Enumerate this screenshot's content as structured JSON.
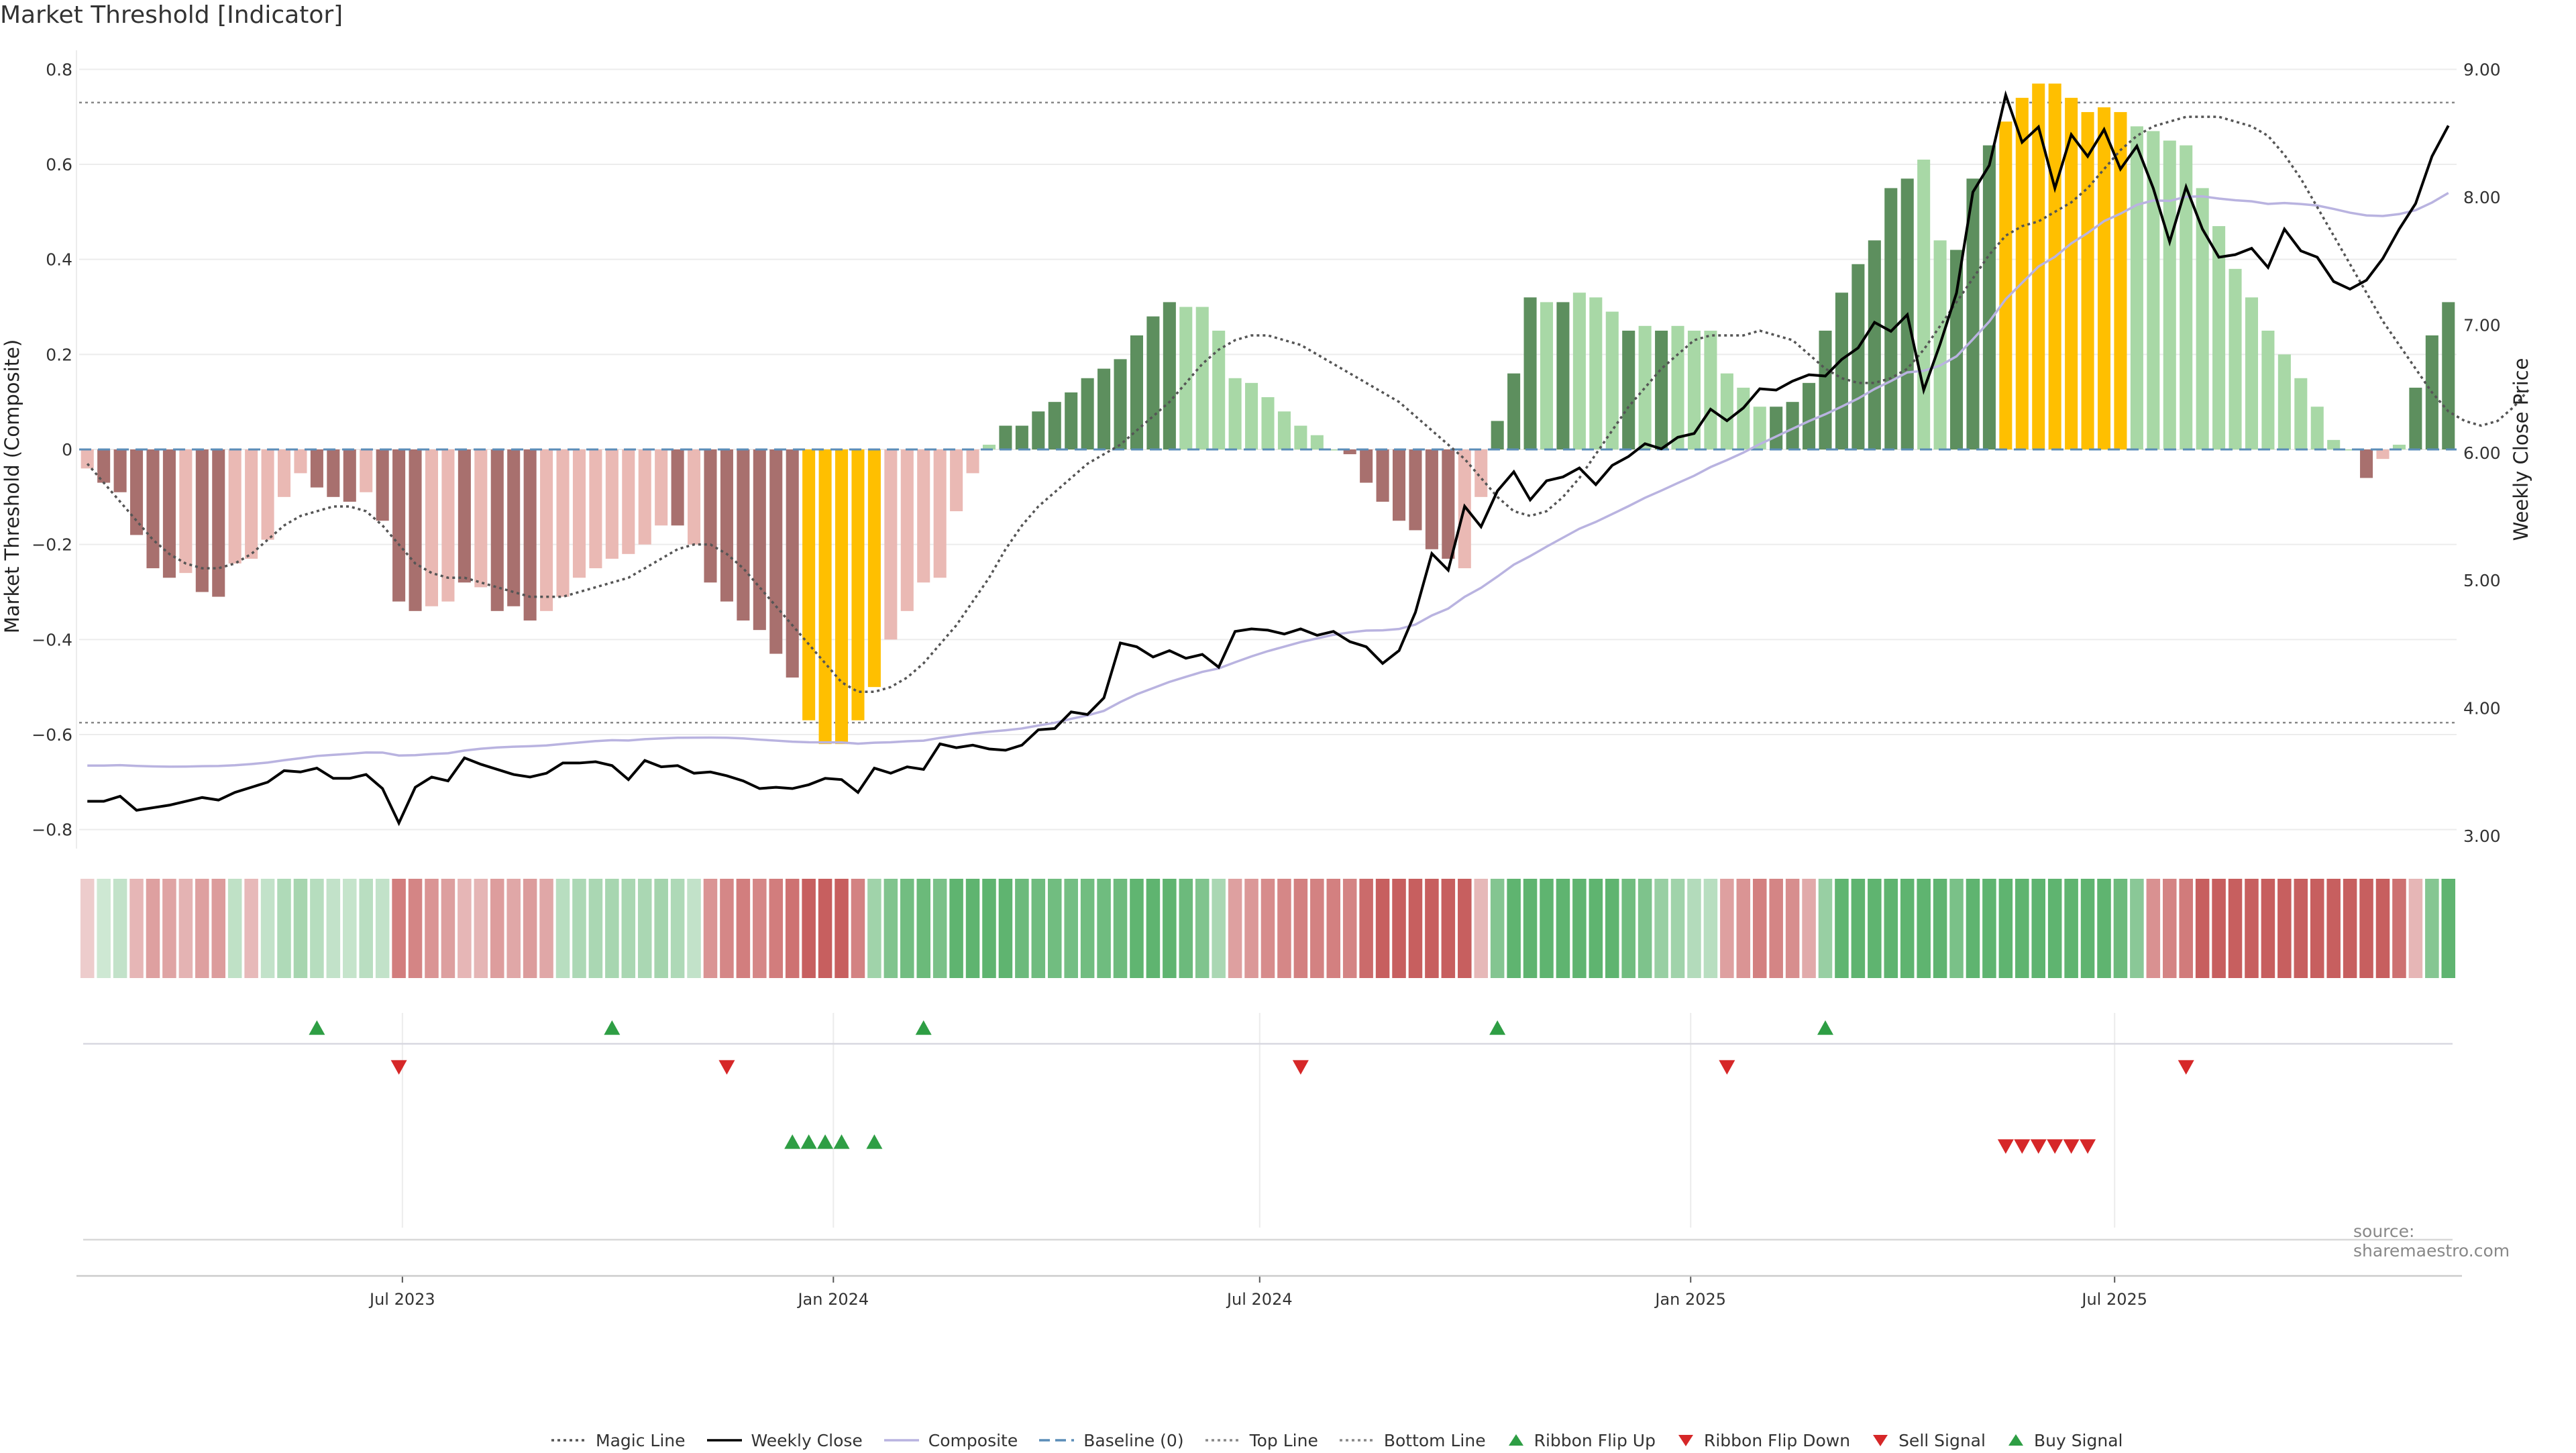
{
  "title": "Market Threshold [Indicator]",
  "source": "source: sharemaestro.com",
  "left_axis": {
    "label": "Market Threshold (Composite)",
    "ticks": [
      "0.8",
      "0.6",
      "0.4",
      "0.2",
      "0",
      "−0.2",
      "−0.4",
      "−0.6",
      "−0.8"
    ]
  },
  "right_axis": {
    "label": "Weekly Close Price",
    "ticks": [
      "9.00",
      "8.00",
      "7.00",
      "6.00",
      "5.00",
      "4.00",
      "3.00"
    ]
  },
  "x_ticks": [
    "Jul 2023",
    "Jan 2024",
    "Jul 2024",
    "Jan 2025",
    "Jul 2025"
  ],
  "legend": [
    {
      "label": "Magic Line",
      "icon": "dotted-line",
      "color": "#555555"
    },
    {
      "label": "Weekly Close",
      "icon": "solid-line",
      "color": "#000000"
    },
    {
      "label": "Composite",
      "icon": "solid-line",
      "color": "#b9b3e0"
    },
    {
      "label": "Baseline (0)",
      "icon": "dashed-line",
      "color": "#5b8db8"
    },
    {
      "label": "Top Line",
      "icon": "dotted-line",
      "color": "#888888"
    },
    {
      "label": "Bottom Line",
      "icon": "dotted-line",
      "color": "#888888"
    },
    {
      "label": "Ribbon Flip Up",
      "icon": "triangle-up",
      "color": "#2e9e44"
    },
    {
      "label": "Ribbon Flip Down",
      "icon": "triangle-down",
      "color": "#d62728"
    },
    {
      "label": "Sell Signal",
      "icon": "triangle-down",
      "color": "#d62728"
    },
    {
      "label": "Buy Signal",
      "icon": "triangle-up",
      "color": "#2e9e44"
    }
  ],
  "colors": {
    "dark_red": "#a8706e",
    "light_red": "#eab9b4",
    "dark_green": "#5d8f5e",
    "light_green": "#a8d8a6",
    "gold": "#ffbf00",
    "close": "#000000",
    "composite": "#b9b3e0",
    "magic": "#555555",
    "baseline": "#5b8db8"
  },
  "chart_data": {
    "type": "bar",
    "x_range": [
      "2023-02-13",
      "2025-11-24"
    ],
    "ylim_left": [
      -0.84,
      0.84
    ],
    "ylim_right": [
      2.9,
      9.15
    ],
    "top_line": 0.73,
    "bottom_line": -0.575,
    "baseline": 0,
    "composite_bars": [
      -0.04,
      -0.07,
      -0.09,
      -0.18,
      -0.25,
      -0.27,
      -0.26,
      -0.3,
      -0.31,
      -0.24,
      -0.23,
      -0.19,
      -0.1,
      -0.05,
      -0.08,
      -0.1,
      -0.11,
      -0.09,
      -0.15,
      -0.32,
      -0.34,
      -0.33,
      -0.32,
      -0.28,
      -0.29,
      -0.34,
      -0.33,
      -0.36,
      -0.34,
      -0.31,
      -0.27,
      -0.25,
      -0.23,
      -0.22,
      -0.2,
      -0.16,
      -0.16,
      -0.2,
      -0.28,
      -0.32,
      -0.36,
      -0.38,
      -0.43,
      -0.48,
      -0.57,
      -0.62,
      -0.62,
      -0.57,
      -0.5,
      -0.4,
      -0.34,
      -0.28,
      -0.27,
      -0.13,
      -0.05,
      0.01,
      0.05,
      0.05,
      0.08,
      0.1,
      0.12,
      0.15,
      0.17,
      0.19,
      0.24,
      0.28,
      0.31,
      0.3,
      0.3,
      0.25,
      0.15,
      0.14,
      0.11,
      0.08,
      0.05,
      0.03,
      0.0,
      -0.01,
      -0.07,
      -0.11,
      -0.15,
      -0.17,
      -0.21,
      -0.23,
      -0.25,
      -0.1,
      0.06,
      0.16,
      0.32,
      0.31,
      0.31,
      0.33,
      0.32,
      0.29,
      0.25,
      0.26,
      0.25,
      0.26,
      0.25,
      0.25,
      0.16,
      0.13,
      0.09,
      0.09,
      0.1,
      0.14,
      0.25,
      0.33,
      0.39,
      0.44,
      0.55,
      0.57,
      0.61,
      0.44,
      0.42,
      0.57,
      0.64,
      0.69,
      0.74,
      0.77,
      0.77,
      0.74,
      0.71,
      0.72,
      0.71,
      0.68,
      0.67,
      0.65,
      0.64,
      0.55,
      0.47,
      0.38,
      0.32,
      0.25,
      0.2,
      0.15,
      0.09,
      0.02,
      0.0,
      -0.06,
      -0.02,
      0.01,
      0.13,
      0.24,
      0.31
    ],
    "bar_colors": [
      "L",
      "D",
      "D",
      "D",
      "D",
      "D",
      "L",
      "D",
      "D",
      "L",
      "L",
      "L",
      "L",
      "L",
      "D",
      "D",
      "D",
      "L",
      "D",
      "D",
      "D",
      "L",
      "L",
      "D",
      "L",
      "D",
      "D",
      "D",
      "L",
      "L",
      "L",
      "L",
      "L",
      "L",
      "L",
      "L",
      "D",
      "L",
      "D",
      "D",
      "D",
      "D",
      "D",
      "D",
      "G",
      "G",
      "G",
      "G",
      "G",
      "L",
      "L",
      "L",
      "L",
      "L",
      "L",
      "L",
      "D",
      "D",
      "D",
      "D",
      "D",
      "D",
      "D",
      "D",
      "D",
      "D",
      "D",
      "L",
      "L",
      "L",
      "L",
      "L",
      "L",
      "L",
      "L",
      "L",
      "L",
      "D",
      "D",
      "D",
      "D",
      "D",
      "D",
      "D",
      "L",
      "L",
      "D",
      "D",
      "D",
      "L",
      "D",
      "L",
      "L",
      "L",
      "D",
      "L",
      "D",
      "L",
      "L",
      "L",
      "L",
      "L",
      "L",
      "D",
      "D",
      "D",
      "D",
      "D",
      "D",
      "D",
      "D",
      "D",
      "L",
      "L",
      "D",
      "D",
      "D",
      "G",
      "G",
      "G",
      "G",
      "G",
      "G",
      "G",
      "G",
      "L",
      "L",
      "L",
      "L",
      "L",
      "L",
      "L",
      "L",
      "L",
      "L",
      "L",
      "L",
      "L",
      "L",
      "D",
      "L",
      "L",
      "D",
      "D",
      "D"
    ],
    "magic_line": [
      -0.03,
      -0.07,
      -0.11,
      -0.15,
      -0.19,
      -0.22,
      -0.24,
      -0.25,
      -0.25,
      -0.24,
      -0.22,
      -0.19,
      -0.16,
      -0.14,
      -0.13,
      -0.12,
      -0.12,
      -0.13,
      -0.16,
      -0.2,
      -0.24,
      -0.26,
      -0.27,
      -0.27,
      -0.28,
      -0.29,
      -0.3,
      -0.31,
      -0.31,
      -0.31,
      -0.3,
      -0.29,
      -0.28,
      -0.27,
      -0.25,
      -0.23,
      -0.21,
      -0.2,
      -0.2,
      -0.22,
      -0.25,
      -0.29,
      -0.33,
      -0.37,
      -0.41,
      -0.45,
      -0.49,
      -0.51,
      -0.51,
      -0.5,
      -0.48,
      -0.45,
      -0.41,
      -0.37,
      -0.32,
      -0.27,
      -0.21,
      -0.16,
      -0.12,
      -0.09,
      -0.06,
      -0.03,
      -0.01,
      0.01,
      0.04,
      0.07,
      0.1,
      0.14,
      0.18,
      0.21,
      0.23,
      0.24,
      0.24,
      0.23,
      0.22,
      0.2,
      0.18,
      0.16,
      0.14,
      0.12,
      0.1,
      0.07,
      0.04,
      0.01,
      -0.02,
      -0.06,
      -0.1,
      -0.13,
      -0.14,
      -0.13,
      -0.1,
      -0.06,
      -0.01,
      0.04,
      0.09,
      0.13,
      0.17,
      0.2,
      0.23,
      0.24,
      0.24,
      0.24,
      0.25,
      0.24,
      0.23,
      0.2,
      0.17,
      0.15,
      0.14,
      0.14,
      0.15,
      0.17,
      0.21,
      0.26,
      0.31,
      0.36,
      0.41,
      0.45,
      0.47,
      0.48,
      0.5,
      0.52,
      0.55,
      0.59,
      0.63,
      0.66,
      0.68,
      0.69,
      0.7,
      0.7,
      0.7,
      0.69,
      0.68,
      0.66,
      0.62,
      0.57,
      0.51,
      0.45,
      0.39,
      0.33,
      0.27,
      0.22,
      0.17,
      0.12,
      0.08,
      0.06,
      0.05,
      0.06,
      0.09,
      0.13
    ],
    "weekly_close": [
      3.27,
      3.27,
      3.31,
      3.2,
      3.22,
      3.24,
      3.27,
      3.3,
      3.28,
      3.34,
      3.38,
      3.42,
      3.51,
      3.5,
      3.53,
      3.45,
      3.45,
      3.48,
      3.37,
      3.1,
      3.38,
      3.46,
      3.43,
      3.61,
      3.56,
      3.52,
      3.48,
      3.46,
      3.49,
      3.57,
      3.57,
      3.58,
      3.55,
      3.44,
      3.59,
      3.54,
      3.55,
      3.49,
      3.5,
      3.47,
      3.43,
      3.37,
      3.38,
      3.37,
      3.4,
      3.45,
      3.44,
      3.34,
      3.53,
      3.49,
      3.54,
      3.52,
      3.72,
      3.69,
      3.71,
      3.68,
      3.67,
      3.71,
      3.83,
      3.84,
      3.97,
      3.95,
      4.08,
      4.51,
      4.48,
      4.4,
      4.45,
      4.39,
      4.42,
      4.32,
      4.6,
      4.62,
      4.61,
      4.58,
      4.62,
      4.57,
      4.6,
      4.52,
      4.48,
      4.35,
      4.45,
      4.75,
      5.21,
      5.08,
      5.58,
      5.42,
      5.7,
      5.85,
      5.63,
      5.78,
      5.81,
      5.88,
      5.75,
      5.9,
      5.97,
      6.07,
      6.03,
      6.12,
      6.15,
      6.34,
      6.25,
      6.35,
      6.5,
      6.49,
      6.56,
      6.61,
      6.6,
      6.73,
      6.82,
      7.02,
      6.95,
      7.08,
      6.49,
      6.85,
      7.25,
      8.04,
      8.25,
      8.8,
      8.43,
      8.55,
      8.07,
      8.49,
      8.32,
      8.53,
      8.22,
      8.4,
      8.07,
      7.65,
      8.08,
      7.75,
      7.53,
      7.55,
      7.6,
      7.45,
      7.75,
      7.58,
      7.53,
      7.34,
      7.28,
      7.35,
      7.52,
      7.75,
      7.95,
      8.32,
      8.56
    ]
  }
}
